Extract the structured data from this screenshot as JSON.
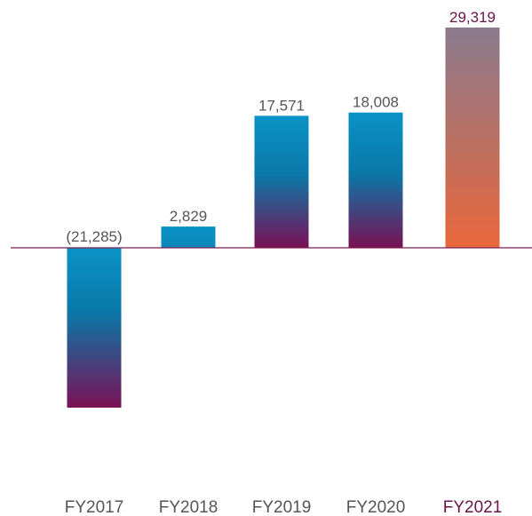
{
  "chart_data": {
    "type": "bar",
    "categories": [
      "FY2017",
      "FY2018",
      "FY2019",
      "FY2020",
      "FY2021"
    ],
    "values": [
      -21285,
      2829,
      17571,
      18008,
      29319
    ],
    "value_labels": [
      "(21,285)",
      "2,829",
      "17,571",
      "18,008",
      "29,319"
    ],
    "highlight_index": 4,
    "grid": false,
    "legend": "none",
    "colors": {
      "bar_top": "#0a93c6",
      "bar_mid": "#0a78a8",
      "bar_bottom": "#7a1155",
      "highlight_top": "#8a7a8e",
      "highlight_bottom": "#e8673a",
      "highlight_text": "#6a1449",
      "text": "#555555",
      "baseline": "#7b1e55"
    }
  }
}
